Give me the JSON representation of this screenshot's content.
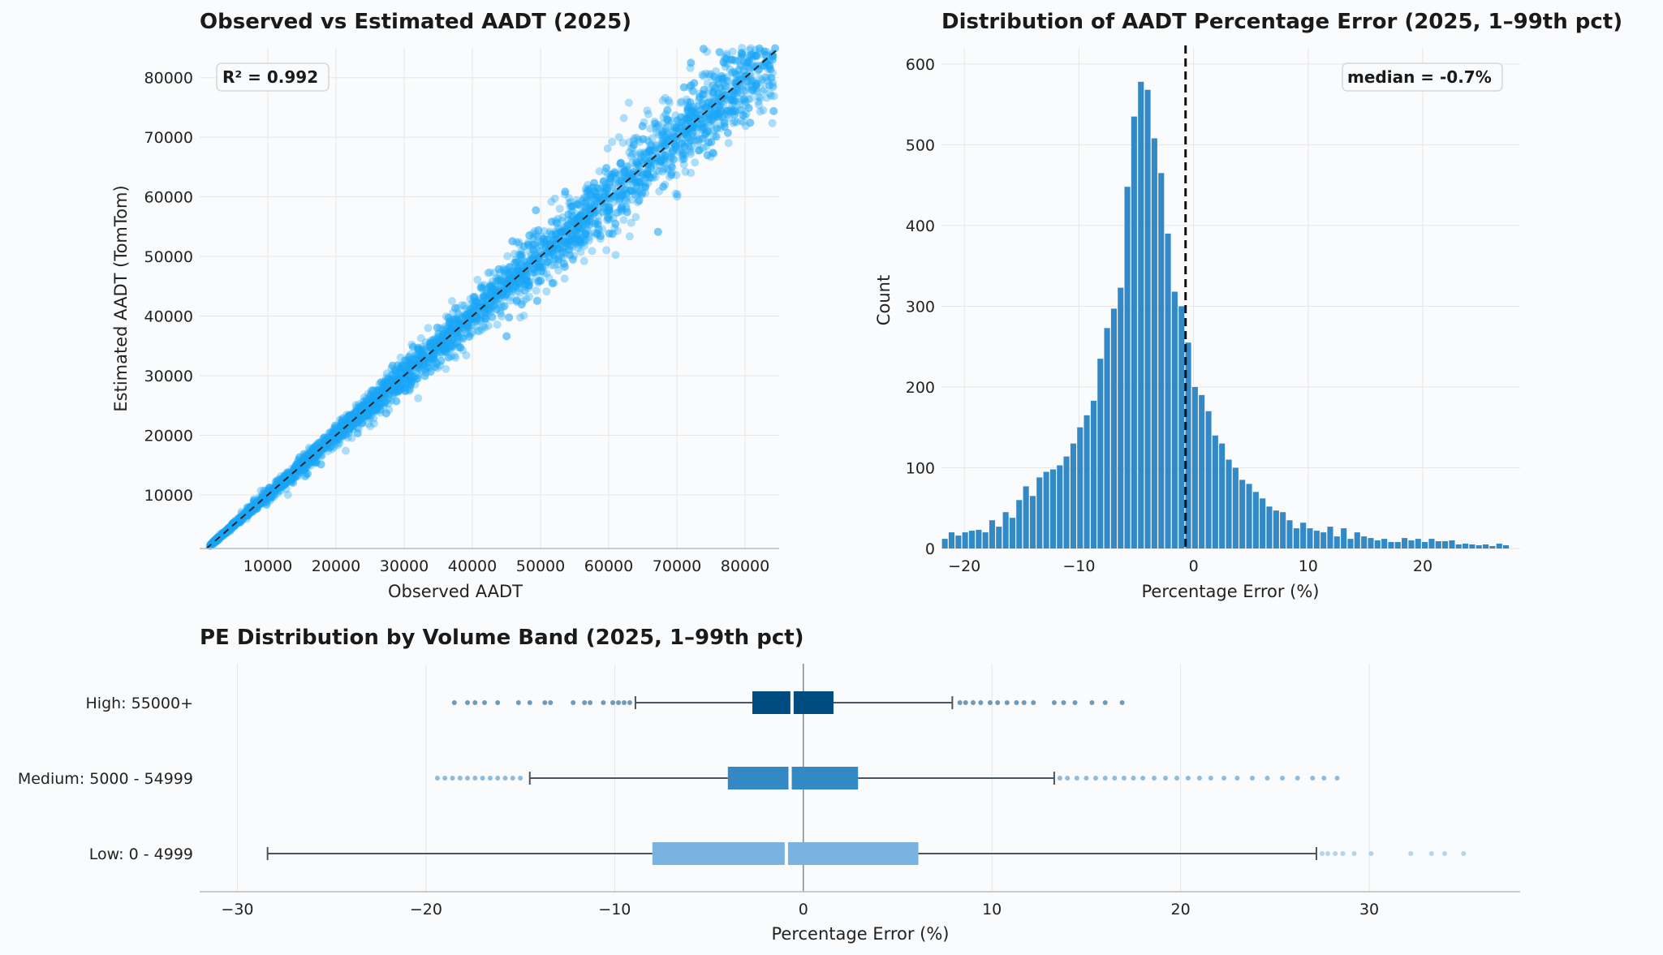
{
  "chart_data": [
    {
      "type": "scatter",
      "title": "Observed vs Estimated AADT (2025)",
      "xlabel": "Observed AADT",
      "ylabel": "Estimated AADT (TomTom)",
      "xlim": [
        0,
        85000
      ],
      "ylim": [
        1000,
        85000
      ],
      "xticks": [
        10000,
        20000,
        30000,
        40000,
        50000,
        60000,
        70000,
        80000
      ],
      "yticks": [
        10000,
        20000,
        30000,
        40000,
        50000,
        60000,
        70000,
        80000
      ],
      "annotation": "R² = 0.992",
      "r_squared": 0.992,
      "reference_line": "y = x (dashed)",
      "point_color": "#1aa7f5",
      "n_points_approx": 4000,
      "grid": true
    },
    {
      "type": "bar",
      "title": "Distribution of AADT Percentage Error (2025, 1–99th pct)",
      "xlabel": "Percentage Error (%)",
      "ylabel": "Count",
      "xlim": [
        -22,
        28.5
      ],
      "ylim": [
        0,
        620
      ],
      "xticks": [
        -20,
        -10,
        0,
        10,
        20
      ],
      "xtick_labels": [
        "−20",
        "−10",
        "0",
        "10",
        "20"
      ],
      "yticks": [
        0,
        100,
        200,
        300,
        400,
        500,
        600
      ],
      "bin_start": -22,
      "bin_width": 0.59,
      "counts": [
        12,
        20,
        16,
        20,
        22,
        23,
        20,
        35,
        27,
        45,
        38,
        60,
        77,
        65,
        88,
        95,
        98,
        103,
        114,
        130,
        150,
        165,
        183,
        235,
        273,
        297,
        323,
        448,
        535,
        578,
        568,
        508,
        465,
        390,
        318,
        300,
        255,
        200,
        190,
        170,
        140,
        130,
        110,
        100,
        85,
        80,
        70,
        62,
        52,
        47,
        45,
        35,
        25,
        32,
        25,
        22,
        20,
        27,
        15,
        25,
        12,
        20,
        15,
        13,
        10,
        12,
        8,
        8,
        13,
        10,
        12,
        8,
        12,
        9,
        9,
        10,
        5,
        6,
        5,
        4,
        5,
        3,
        6,
        4
      ],
      "median": -0.7,
      "median_label": "median = -0.7%",
      "bar_color": "#3389c6",
      "grid": true
    },
    {
      "type": "box",
      "title": "PE Distribution by Volume Band (2025, 1–99th pct)",
      "xlabel": "Percentage Error (%)",
      "xlim": [
        -32,
        38
      ],
      "xticks": [
        -30,
        -20,
        -10,
        0,
        10,
        20,
        30
      ],
      "xtick_labels": [
        "−30",
        "−20",
        "−10",
        "0",
        "10",
        "20",
        "30"
      ],
      "reference_line": 0,
      "bands": [
        {
          "name": "High: 55000+",
          "color": "#004b80",
          "q1": -2.7,
          "median": -0.6,
          "q3": 1.6,
          "whisker_low": -8.9,
          "whisker_high": 7.9,
          "outliers_low": [
            -18.5,
            -17.8,
            -17.4,
            -16.9,
            -16.2,
            -15.1,
            -14.5,
            -13.7,
            -13.4,
            -12.2,
            -11.6,
            -11.3,
            -10.6,
            -10.1,
            -9.8,
            -9.5,
            -9.2
          ],
          "outliers_high": [
            8.3,
            8.6,
            9.0,
            9.4,
            9.9,
            10.3,
            10.8,
            11.3,
            11.7,
            12.2,
            13.3,
            13.8,
            14.4,
            15.3,
            16.0,
            16.9
          ]
        },
        {
          "name": "Medium: 5000 - 54999",
          "color": "#3389c6",
          "q1": -4.0,
          "median": -0.7,
          "q3": 2.9,
          "whisker_low": -14.5,
          "whisker_high": 13.3,
          "outliers_low": [
            -19.4,
            -19.0,
            -18.6,
            -18.2,
            -17.8,
            -17.4,
            -17.0,
            -16.6,
            -16.2,
            -15.8,
            -15.4,
            -15.0
          ],
          "outliers_high": [
            13.6,
            14.0,
            14.5,
            15.0,
            15.5,
            16.0,
            16.5,
            17.0,
            17.5,
            18.0,
            18.6,
            19.2,
            19.8,
            20.4,
            21.0,
            21.6,
            22.3,
            23.0,
            23.8,
            24.6,
            25.4,
            26.2,
            27.0,
            27.6,
            28.3
          ]
        },
        {
          "name": "Low: 0 - 4999",
          "color": "#7ab3e0",
          "q1": -8.0,
          "median": -0.9,
          "q3": 6.1,
          "whisker_low": -28.4,
          "whisker_high": 27.2,
          "outliers_low": [],
          "outliers_high": [
            27.5,
            27.8,
            28.2,
            28.6,
            29.2,
            30.1,
            32.2,
            33.3,
            34.0,
            35.0
          ]
        }
      ]
    }
  ]
}
